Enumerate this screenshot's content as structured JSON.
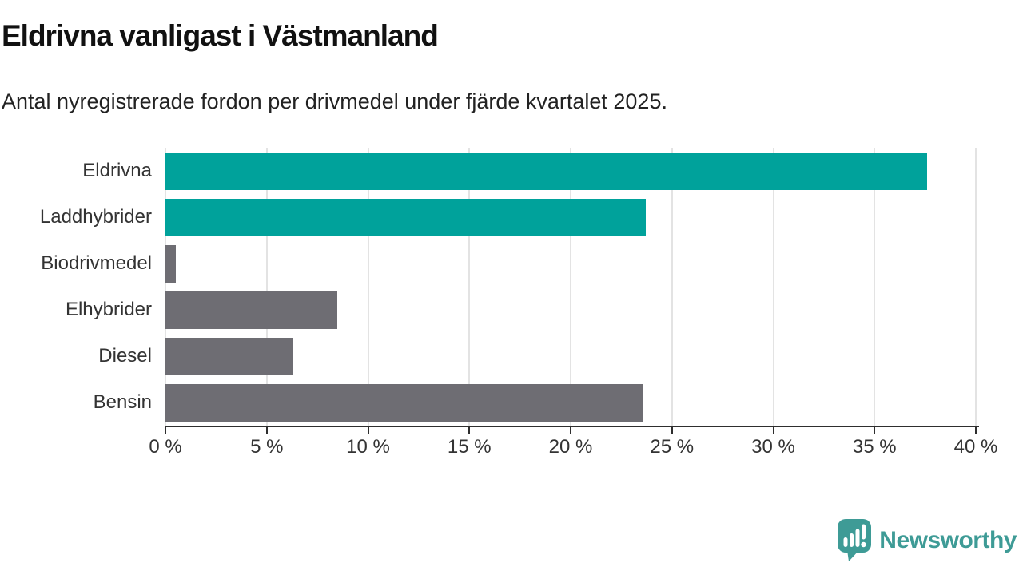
{
  "header": {
    "title": "Eldrivna vanligast i Västmanland",
    "subtitle": "Antal nyregistrerade fordon per drivmedel under fjärde kvartalet 2025."
  },
  "chart_data": {
    "type": "bar",
    "orientation": "horizontal",
    "title": "Eldrivna vanligast i Västmanland",
    "subtitle": "Antal nyregistrerade fordon per drivmedel under fjärde kvartalet 2025.",
    "categories": [
      "Eldrivna",
      "Laddhybrider",
      "Biodrivmedel",
      "Elhybrider",
      "Diesel",
      "Bensin"
    ],
    "values": [
      37.6,
      23.7,
      0.5,
      8.5,
      6.3,
      23.6
    ],
    "bar_colors": [
      "#00a29b",
      "#00a29b",
      "#6e6d73",
      "#6e6d73",
      "#6e6d73",
      "#6e6d73"
    ],
    "xlabel": "",
    "ylabel": "",
    "xlim": [
      0,
      40
    ],
    "x_tick_values": [
      0,
      5,
      10,
      15,
      20,
      25,
      30,
      35,
      40
    ],
    "x_tick_labels": [
      "0 %",
      "5 %",
      "10 %",
      "15 %",
      "20 %",
      "25 %",
      "30 %",
      "35 %",
      "40 %"
    ],
    "grid": "vertical-only",
    "legend": false
  },
  "colors": {
    "accent_teal": "#00a29b",
    "neutral_gray": "#6e6d73",
    "gridline": "#e3e3e3",
    "axis_line": "#2e2e2e",
    "title_text": "#111111",
    "label_text": "#333333",
    "brand_teal": "#3e9b96"
  },
  "footer": {
    "brand": "Newsworthy"
  }
}
